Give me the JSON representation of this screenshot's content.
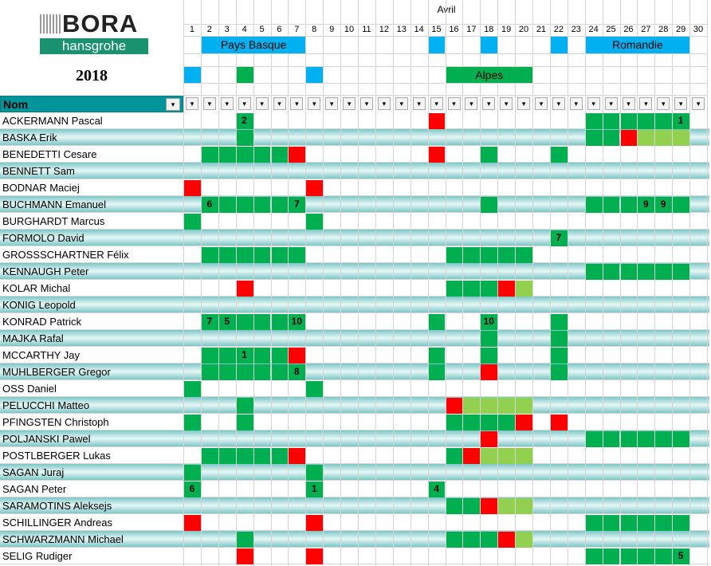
{
  "logo": {
    "brand": "BORA",
    "sub": "hansgrohe"
  },
  "year": "2018",
  "month": "Avril",
  "column_header": "Nom",
  "days": [
    1,
    2,
    3,
    4,
    5,
    6,
    7,
    8,
    9,
    10,
    11,
    12,
    13,
    14,
    15,
    16,
    17,
    18,
    19,
    20,
    21,
    22,
    23,
    24,
    25,
    26,
    27,
    28,
    29,
    30
  ],
  "colors": {
    "g": "#00b050",
    "r": "#ff0000",
    "l": "#92d050"
  },
  "races": [
    {
      "name": "Pays Basque",
      "from": 2,
      "to": 7,
      "row": 0,
      "color": "#00b0f0"
    },
    {
      "from": 15,
      "to": 15,
      "row": 0,
      "color": "#00b0f0"
    },
    {
      "from": 18,
      "to": 18,
      "row": 0,
      "color": "#00b0f0"
    },
    {
      "from": 22,
      "to": 22,
      "row": 0,
      "color": "#00b0f0"
    },
    {
      "name": "Romandie",
      "from": 24,
      "to": 29,
      "row": 0,
      "color": "#00b0f0"
    },
    {
      "from": 1,
      "to": 1,
      "row": 1,
      "color": "#00b0f0"
    },
    {
      "from": 4,
      "to": 4,
      "row": 1,
      "color": "#00b050"
    },
    {
      "from": 8,
      "to": 8,
      "row": 1,
      "color": "#00b0f0"
    },
    {
      "name": "Alpes",
      "from": 16,
      "to": 20,
      "row": 1,
      "color": "#00b050"
    }
  ],
  "riders": [
    {
      "name": "ACKERMANN Pascal",
      "cells": "...g..........r........gggggg.",
      "marks": [
        {
          "day": 4,
          "value": 2
        },
        {
          "day": 29,
          "value": 1
        }
      ]
    },
    {
      "name": "BASKA Erik",
      "cells": "...g...................ggrlll.",
      "marks": []
    },
    {
      "name": "BENEDETTI Cesare",
      "cells": ".gggggr.......r..g...g........",
      "marks": []
    },
    {
      "name": "BENNETT Sam",
      "cells": "..............................",
      "marks": []
    },
    {
      "name": "BODNAR Maciej",
      "cells": "r......r......................",
      "marks": []
    },
    {
      "name": "BUCHMANN Emanuel",
      "cells": ".gggggg..........g.....gggggg.",
      "marks": [
        {
          "day": 2,
          "value": 6
        },
        {
          "day": 7,
          "value": 7
        },
        {
          "day": 27,
          "value": 9
        },
        {
          "day": 28,
          "value": 9
        }
      ]
    },
    {
      "name": "BURGHARDT Marcus",
      "cells": "g......g......................",
      "marks": []
    },
    {
      "name": "FORMOLO David",
      "cells": ".....................g........",
      "marks": [
        {
          "day": 22,
          "value": 7
        }
      ]
    },
    {
      "name": "GROSSSCHARTNER Félix",
      "cells": ".gggggg........ggggg..........",
      "marks": []
    },
    {
      "name": "KENNAUGH Peter",
      "cells": ".......................gggggg.",
      "marks": []
    },
    {
      "name": "KOLAR Michal",
      "cells": "...r...........gggrl..........",
      "marks": []
    },
    {
      "name": "KONIG Leopold",
      "cells": "..............................",
      "marks": []
    },
    {
      "name": "KONRAD Patrick",
      "cells": ".gggggg.......g..g...g........",
      "marks": [
        {
          "day": 2,
          "value": 7
        },
        {
          "day": 3,
          "value": 5
        },
        {
          "day": 7,
          "value": 10
        },
        {
          "day": 18,
          "value": 10
        }
      ]
    },
    {
      "name": "MAJKA Rafal",
      "cells": ".................g...g........",
      "marks": []
    },
    {
      "name": "MCCARTHY Jay",
      "cells": ".gggggr.......g..g...g........",
      "marks": [
        {
          "day": 4,
          "value": 1
        }
      ]
    },
    {
      "name": "MUHLBERGER Gregor",
      "cells": ".gggggg.......g..r...g........",
      "marks": [
        {
          "day": 7,
          "value": 8
        }
      ]
    },
    {
      "name": "OSS Daniel",
      "cells": "g......g......................",
      "marks": []
    },
    {
      "name": "PELUCCHI Matteo",
      "cells": "...g...........rllll..........",
      "marks": []
    },
    {
      "name": "PFINGSTEN Christoph",
      "cells": "g..g...........ggggr.r........",
      "marks": []
    },
    {
      "name": "POLJANSKI Pawel",
      "cells": ".................r.....gggggg.",
      "marks": []
    },
    {
      "name": "POSTLBERGER Lukas",
      "cells": ".gggggr........grlll..........",
      "marks": []
    },
    {
      "name": "SAGAN Juraj",
      "cells": "g......g......................",
      "marks": []
    },
    {
      "name": "SAGAN Peter",
      "cells": "g......g......g...............",
      "marks": [
        {
          "day": 1,
          "value": 6
        },
        {
          "day": 8,
          "value": 1
        },
        {
          "day": 15,
          "value": 4
        }
      ]
    },
    {
      "name": "SARAMOTINS Aleksejs",
      "cells": "...............ggrll..........",
      "marks": []
    },
    {
      "name": "SCHILLINGER Andreas",
      "cells": "r......r...............gggggg.",
      "marks": []
    },
    {
      "name": "SCHWARZMANN Michael",
      "cells": "...g...........gggrl..........",
      "marks": []
    },
    {
      "name": "SELIG Rudiger",
      "cells": "...r...r...............gggggg.",
      "marks": [
        {
          "day": 29,
          "value": 5
        }
      ]
    }
  ]
}
